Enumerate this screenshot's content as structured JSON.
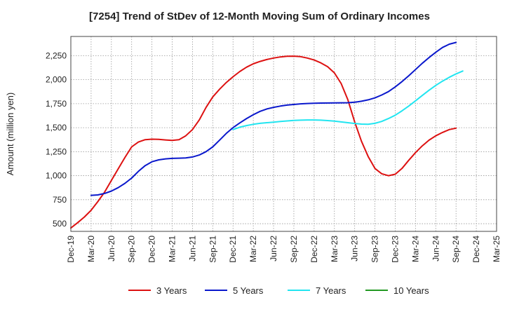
{
  "chart_data": {
    "type": "line",
    "title": "[7254]  Trend of StDev of 12-Month Moving Sum of Ordinary Incomes",
    "xlabel": "",
    "ylabel": "Amount (million yen)",
    "x_ticks": [
      "Dec-19",
      "Mar-20",
      "Jun-20",
      "Sep-20",
      "Dec-20",
      "Mar-21",
      "Jun-21",
      "Sep-21",
      "Dec-21",
      "Mar-22",
      "Jun-22",
      "Sep-22",
      "Dec-22",
      "Mar-23",
      "Jun-23",
      "Sep-23",
      "Dec-23",
      "Mar-24",
      "Jun-24",
      "Sep-24",
      "Dec-24",
      "Mar-25"
    ],
    "y_ticks": [
      500,
      750,
      1000,
      1250,
      1500,
      1750,
      2000,
      2250
    ],
    "y_tick_labels": [
      "500",
      "750",
      "1,000",
      "1,250",
      "1,500",
      "1,750",
      "2,000",
      "2,250"
    ],
    "ylim": [
      420,
      2450
    ],
    "grid": true,
    "legend_position": "bottom",
    "series": [
      {
        "name": "3 Years",
        "color": "#dd1111",
        "start": 0,
        "values": [
          455,
          510,
          570,
          640,
          730,
          830,
          950,
          1070,
          1190,
          1300,
          1350,
          1375,
          1380,
          1378,
          1372,
          1368,
          1375,
          1415,
          1480,
          1580,
          1710,
          1820,
          1900,
          1970,
          2030,
          2085,
          2130,
          2165,
          2190,
          2210,
          2225,
          2237,
          2243,
          2245,
          2240,
          2225,
          2205,
          2175,
          2135,
          2070,
          1960,
          1790,
          1560,
          1360,
          1200,
          1075,
          1020,
          1000,
          1015,
          1075,
          1160,
          1240,
          1310,
          1370,
          1415,
          1450,
          1480,
          1495
        ]
      },
      {
        "name": "5 Years",
        "color": "#0a18cc",
        "start": 3,
        "values": [
          795,
          800,
          815,
          840,
          875,
          920,
          975,
          1045,
          1105,
          1145,
          1165,
          1175,
          1180,
          1182,
          1185,
          1195,
          1215,
          1250,
          1300,
          1370,
          1440,
          1500,
          1550,
          1595,
          1635,
          1670,
          1695,
          1712,
          1725,
          1735,
          1742,
          1748,
          1752,
          1755,
          1756,
          1757,
          1758,
          1759,
          1760,
          1765,
          1775,
          1790,
          1810,
          1840,
          1875,
          1925,
          1980,
          2040,
          2105,
          2170,
          2230,
          2285,
          2335,
          2370,
          2388
        ]
      },
      {
        "name": "7 Years",
        "color": "#22e5f0",
        "start": 24,
        "values": [
          1480,
          1505,
          1522,
          1535,
          1545,
          1552,
          1558,
          1564,
          1570,
          1575,
          1578,
          1580,
          1580,
          1578,
          1574,
          1568,
          1560,
          1552,
          1544,
          1537,
          1535,
          1545,
          1565,
          1595,
          1630,
          1675,
          1725,
          1780,
          1835,
          1890,
          1940,
          1985,
          2025,
          2060,
          2090
        ]
      },
      {
        "name": "10 Years",
        "color": "#229922",
        "start": 0,
        "values": []
      }
    ]
  }
}
